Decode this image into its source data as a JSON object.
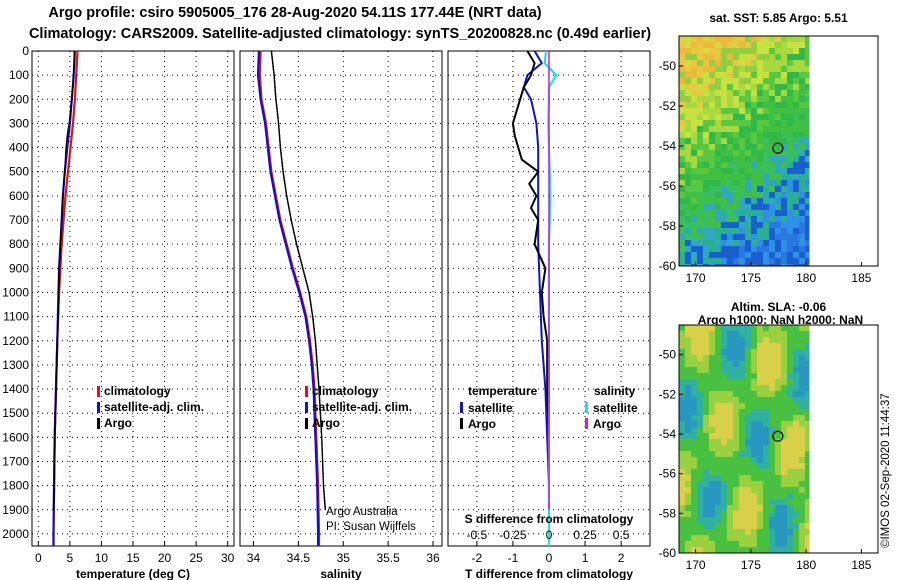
{
  "title_line1": "Argo profile: csiro 5905005_176 28-Aug-2020 54.11S 177.44E (NRT data)",
  "title_line2": "Climatology: CARS2009. Satellite-adjusted climatology: synTS_20200828.nc (0.49d earlier)",
  "colors": {
    "climatology": "#dd1111",
    "satellite": "#1111cc",
    "argo": "#000000",
    "sat_salinity": "#22dddd",
    "argo_salinity": "#cc22cc"
  },
  "chart_data": [
    {
      "type": "line",
      "id": "temperature",
      "xlabel": "temperature (deg C)",
      "ylabel": "",
      "xlim": [
        -1,
        31
      ],
      "ylim": [
        2050,
        0
      ],
      "xticks": [
        0,
        5,
        10,
        15,
        20,
        25,
        30
      ],
      "yticks": [
        0,
        100,
        200,
        300,
        400,
        500,
        600,
        700,
        800,
        900,
        1000,
        1100,
        1200,
        1300,
        1400,
        1500,
        1600,
        1700,
        1800,
        1900,
        2000
      ],
      "grid": true,
      "legend": [
        "climatology",
        "satellite-adj. clim.",
        "Argo"
      ],
      "series": [
        {
          "name": "climatology",
          "y": [
            0,
            100,
            200,
            300,
            400,
            500,
            600,
            700,
            800,
            900,
            1000,
            1200,
            1400,
            1600,
            1800,
            2000,
            2050
          ],
          "values": [
            6.2,
            6.0,
            5.8,
            5.5,
            5.1,
            4.7,
            4.3,
            4.0,
            3.7,
            3.5,
            3.3,
            3.0,
            2.8,
            2.6,
            2.5,
            2.4,
            2.4
          ]
        },
        {
          "name": "satellite-adj. clim.",
          "y": [
            0,
            100,
            200,
            300,
            400,
            500,
            600,
            700,
            800,
            900,
            1000,
            1200,
            1400,
            1600,
            1800,
            2000,
            2050
          ],
          "values": [
            5.8,
            5.6,
            5.3,
            5.0,
            4.6,
            4.2,
            3.9,
            3.7,
            3.5,
            3.3,
            3.2,
            3.0,
            2.8,
            2.6,
            2.5,
            2.4,
            2.4
          ]
        },
        {
          "name": "Argo",
          "y": [
            0,
            100,
            200,
            300,
            350,
            400,
            500,
            600,
            700,
            800,
            900,
            1000,
            1200,
            1400,
            1600,
            1800,
            1900
          ],
          "values": [
            5.7,
            5.6,
            5.3,
            4.9,
            4.6,
            4.4,
            4.2,
            3.9,
            3.7,
            3.5,
            3.3,
            3.2,
            3.0,
            2.8,
            2.6,
            2.5,
            2.4
          ]
        }
      ]
    },
    {
      "type": "line",
      "id": "salinity",
      "xlabel": "salinity",
      "ylabel": "",
      "xlim": [
        33.85,
        36.1
      ],
      "ylim": [
        2050,
        0
      ],
      "xticks": [
        34,
        34.5,
        35,
        35.5,
        36
      ],
      "grid": true,
      "legend": [
        "climatology",
        "satellite-adj. clim.",
        "Argo"
      ],
      "annotations": [
        "Argo Australia",
        "PI: Susan Wijffels"
      ],
      "series": [
        {
          "name": "climatology",
          "y": [
            0,
            100,
            200,
            300,
            400,
            500,
            600,
            700,
            800,
            900,
            1000,
            1100,
            1200,
            1300,
            1400,
            1600,
            1800,
            2000,
            2050
          ],
          "values": [
            34.08,
            34.07,
            34.09,
            34.14,
            34.17,
            34.2,
            34.25,
            34.3,
            34.37,
            34.44,
            34.52,
            34.59,
            34.63,
            34.66,
            34.68,
            34.7,
            34.72,
            34.73,
            34.73
          ]
        },
        {
          "name": "satellite-adj. clim.",
          "y": [
            0,
            100,
            200,
            300,
            400,
            500,
            600,
            700,
            800,
            900,
            1000,
            1100,
            1200,
            1300,
            1400,
            1600,
            1800,
            2000,
            2050
          ],
          "values": [
            34.06,
            34.05,
            34.08,
            34.13,
            34.16,
            34.19,
            34.24,
            34.29,
            34.36,
            34.43,
            34.51,
            34.58,
            34.62,
            34.65,
            34.67,
            34.69,
            34.71,
            34.72,
            34.72
          ]
        },
        {
          "name": "Argo",
          "y": [
            0,
            100,
            200,
            300,
            400,
            500,
            600,
            700,
            800,
            900,
            1000,
            1100,
            1200,
            1300,
            1400,
            1600,
            1800,
            1900
          ],
          "values": [
            34.2,
            34.23,
            34.25,
            34.28,
            34.3,
            34.33,
            34.37,
            34.42,
            34.48,
            34.55,
            34.62,
            34.66,
            34.69,
            34.71,
            34.73,
            34.76,
            34.78,
            34.8
          ]
        }
      ]
    },
    {
      "type": "line",
      "id": "difference",
      "xlabel": "T difference from climatology",
      "ylabel": "",
      "xlim": [
        -2.8,
        2.8
      ],
      "ylim": [
        2050,
        0
      ],
      "xticks": [
        -2,
        -1,
        0,
        1,
        2
      ],
      "secondary_xlabel": "S difference from climatology",
      "secondary_xticks": [
        "-0.5",
        "-0.25",
        "0",
        "0.25",
        "0.5"
      ],
      "grid": true,
      "legend": [
        "temperature",
        "satellite",
        "Argo",
        "salinity",
        "satellite",
        "Argo"
      ],
      "series": [
        {
          "name": "T satellite",
          "y": [
            0,
            50,
            100,
            150,
            200,
            300,
            400,
            600,
            800,
            1000,
            1200,
            1400,
            1600,
            1800,
            2000,
            2050
          ],
          "values": [
            -0.4,
            -0.2,
            -0.6,
            -0.7,
            -0.5,
            -0.35,
            -0.3,
            -0.3,
            -0.3,
            -0.25,
            -0.2,
            -0.1,
            -0.05,
            0,
            0,
            0
          ]
        },
        {
          "name": "T Argo",
          "y": [
            0,
            50,
            100,
            150,
            200,
            250,
            300,
            350,
            400,
            450,
            500,
            550,
            600,
            650,
            700,
            800,
            900,
            1000,
            1100,
            1200,
            1400,
            1600,
            1800,
            1900
          ],
          "values": [
            -0.6,
            -0.4,
            -0.5,
            -0.7,
            -0.8,
            -0.9,
            -1.0,
            -0.95,
            -0.85,
            -0.75,
            -0.3,
            -0.55,
            -0.35,
            -0.5,
            -0.3,
            -0.4,
            -0.1,
            -0.2,
            -0.15,
            -0.05,
            -0.05,
            0,
            0,
            0
          ]
        },
        {
          "name": "S satellite",
          "y": [
            0,
            50,
            100,
            150,
            200,
            300,
            400,
            600,
            800,
            1000,
            1200,
            1400,
            1600,
            1800,
            2000,
            2050
          ],
          "values": [
            -0.02,
            -0.03,
            0.05,
            0.0,
            0.0,
            -0.005,
            0.0,
            0.01,
            0.0,
            0.0,
            0.0,
            0.0,
            0.0,
            0.0,
            0.0,
            0.0
          ]
        },
        {
          "name": "S Argo",
          "y": [
            0,
            100,
            200,
            300,
            400,
            600,
            800,
            1000,
            1200,
            1400,
            1600,
            1800,
            1900
          ],
          "values": [
            0.0,
            0.0,
            0.0,
            0.0,
            0.0,
            0.0,
            0.0,
            0.0,
            0.0,
            0.0,
            0.0,
            0.0,
            0.0
          ]
        }
      ]
    },
    {
      "type": "heatmap",
      "id": "sst_map",
      "title": "sat. SST: 5.85 Argo: 5.51",
      "xlim": [
        168.5,
        186.5
      ],
      "ylim": [
        -60,
        -48.5
      ],
      "xticks": [
        170,
        175,
        180,
        185
      ],
      "yticks": [
        -50,
        -52,
        -54,
        -56,
        -58,
        -60
      ],
      "marker": {
        "lon": 177.44,
        "lat": -54.11
      }
    },
    {
      "type": "heatmap",
      "id": "sla_map",
      "title": "Altim. SLA: -0.06",
      "subtitle": "Argo h1000: NaN h2000: NaN",
      "xlim": [
        168.5,
        186.5
      ],
      "ylim": [
        -60,
        -48.5
      ],
      "xticks": [
        170,
        175,
        180,
        185
      ],
      "yticks": [
        -50,
        -52,
        -54,
        -56,
        -58,
        -60
      ],
      "marker": {
        "lon": 177.44,
        "lat": -54.11
      }
    }
  ],
  "timestamp": "©IMOS 02-Sep-2020 11:44:37"
}
